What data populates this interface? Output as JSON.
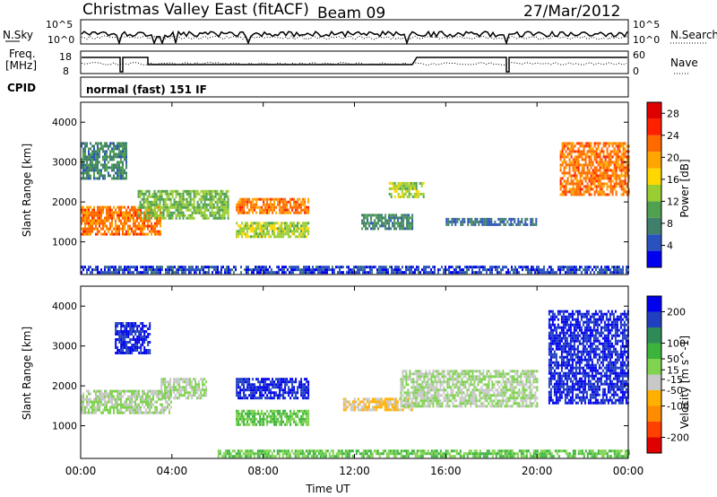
{
  "header": {
    "station": "Christmas Valley East (fitACF)",
    "beam": "Beam 09",
    "date": "27/Mar/2012"
  },
  "strip_labels": {
    "nsky": "N.Sky",
    "nsky_top": "10^5",
    "nsky_bottom": "10^0",
    "nsearch": "N.Search",
    "nsearch_top": "10^5",
    "nsearch_bottom": "10^0",
    "freq_line1": "Freq.",
    "freq_line2": "[MHz]",
    "freq_top": "18",
    "freq_bottom": "8",
    "nave": "Nave",
    "nave_top": "60",
    "nave_bottom": "0",
    "cpid": "CPID",
    "cpid_value": "normal (fast) 151 IF"
  },
  "chart_data": [
    {
      "type": "heatmap",
      "panel": "power",
      "ylabel": "Slant Range [km]",
      "ylim": [
        180,
        4500
      ],
      "yticks": [
        "1000",
        "2000",
        "3000",
        "4000"
      ],
      "ytick_values": [
        1000,
        2000,
        3000,
        4000
      ],
      "xlim": [
        0,
        24
      ],
      "colorbar": {
        "label": "Power [dB]",
        "ticks": [
          "4",
          "8",
          "12",
          "16",
          "20",
          "24",
          "28"
        ],
        "tick_values": [
          4,
          8,
          12,
          16,
          20,
          24,
          28
        ],
        "range": [
          0,
          30
        ],
        "colors": [
          "#0000ee",
          "#2a52be",
          "#3f7f6c",
          "#4fa04f",
          "#9acd32",
          "#ffd700",
          "#ffa500",
          "#ff6a00",
          "#ff2000",
          "#e00000"
        ]
      },
      "regions": [
        {
          "t": [
            0.0,
            3.5
          ],
          "r": [
            1200,
            1900
          ],
          "value": 22
        },
        {
          "t": [
            0.0,
            2.0
          ],
          "r": [
            2600,
            3500
          ],
          "value": 8
        },
        {
          "t": [
            2.5,
            6.5
          ],
          "r": [
            1600,
            2300
          ],
          "value": 12
        },
        {
          "t": [
            6.8,
            10.0
          ],
          "r": [
            1100,
            1500
          ],
          "value": 14
        },
        {
          "t": [
            6.8,
            10.0
          ],
          "r": [
            1700,
            2100
          ],
          "value": 22
        },
        {
          "t": [
            12.3,
            14.5
          ],
          "r": [
            1300,
            1700
          ],
          "value": 8
        },
        {
          "t": [
            13.5,
            15.0
          ],
          "r": [
            2100,
            2500
          ],
          "value": 14
        },
        {
          "t": [
            16.0,
            20.0
          ],
          "r": [
            1400,
            1600
          ],
          "value": 6
        },
        {
          "t": [
            21.0,
            24.0
          ],
          "r": [
            2200,
            3500
          ],
          "value": 22
        },
        {
          "t": [
            0.0,
            24.0
          ],
          "r": [
            200,
            400
          ],
          "value": 4
        }
      ]
    },
    {
      "type": "heatmap",
      "panel": "velocity",
      "ylabel": "Slant Range [km]",
      "ylim": [
        180,
        4500
      ],
      "yticks": [
        "1000",
        "2000",
        "3000",
        "4000"
      ],
      "ytick_values": [
        1000,
        2000,
        3000,
        4000
      ],
      "xlabel": "Time UT",
      "xticks": [
        "00:00",
        "04:00",
        "08:00",
        "12:00",
        "16:00",
        "20:00",
        "00:00"
      ],
      "xtick_values": [
        0,
        4,
        8,
        12,
        16,
        20,
        24
      ],
      "xlim": [
        0,
        24
      ],
      "colorbar": {
        "label": "Velocity [m s^-1]",
        "ticks": [
          "200",
          "100",
          "50",
          "15",
          "-15",
          "-50",
          "-100",
          "-200"
        ],
        "tick_values": [
          200,
          100,
          50,
          15,
          -15,
          -50,
          -100,
          -200
        ],
        "range": [
          -250,
          250
        ],
        "colors": [
          "#e00000",
          "#ff4000",
          "#ff8c00",
          "#ffb000",
          "#c8c8c8",
          "#7fd34f",
          "#3cb43c",
          "#2e8b57",
          "#2040c0",
          "#0000ee"
        ]
      },
      "regions": [
        {
          "t": [
            0.0,
            4.0
          ],
          "r": [
            1300,
            1900
          ],
          "value": 0
        },
        {
          "t": [
            1.5,
            3.0
          ],
          "r": [
            2800,
            3600
          ],
          "value": 200
        },
        {
          "t": [
            3.5,
            5.5
          ],
          "r": [
            1700,
            2200
          ],
          "value": 0
        },
        {
          "t": [
            6.8,
            10.0
          ],
          "r": [
            1700,
            2200
          ],
          "value": 200
        },
        {
          "t": [
            6.8,
            10.0
          ],
          "r": [
            1000,
            1400
          ],
          "value": 50
        },
        {
          "t": [
            11.5,
            14.5
          ],
          "r": [
            1400,
            1700
          ],
          "value": -50
        },
        {
          "t": [
            14.0,
            20.0
          ],
          "r": [
            1500,
            2400
          ],
          "value": 0
        },
        {
          "t": [
            20.5,
            24.0
          ],
          "r": [
            1600,
            3900
          ],
          "value": 200
        },
        {
          "t": [
            6.0,
            24.0
          ],
          "r": [
            200,
            400
          ],
          "value": 50
        }
      ]
    }
  ]
}
